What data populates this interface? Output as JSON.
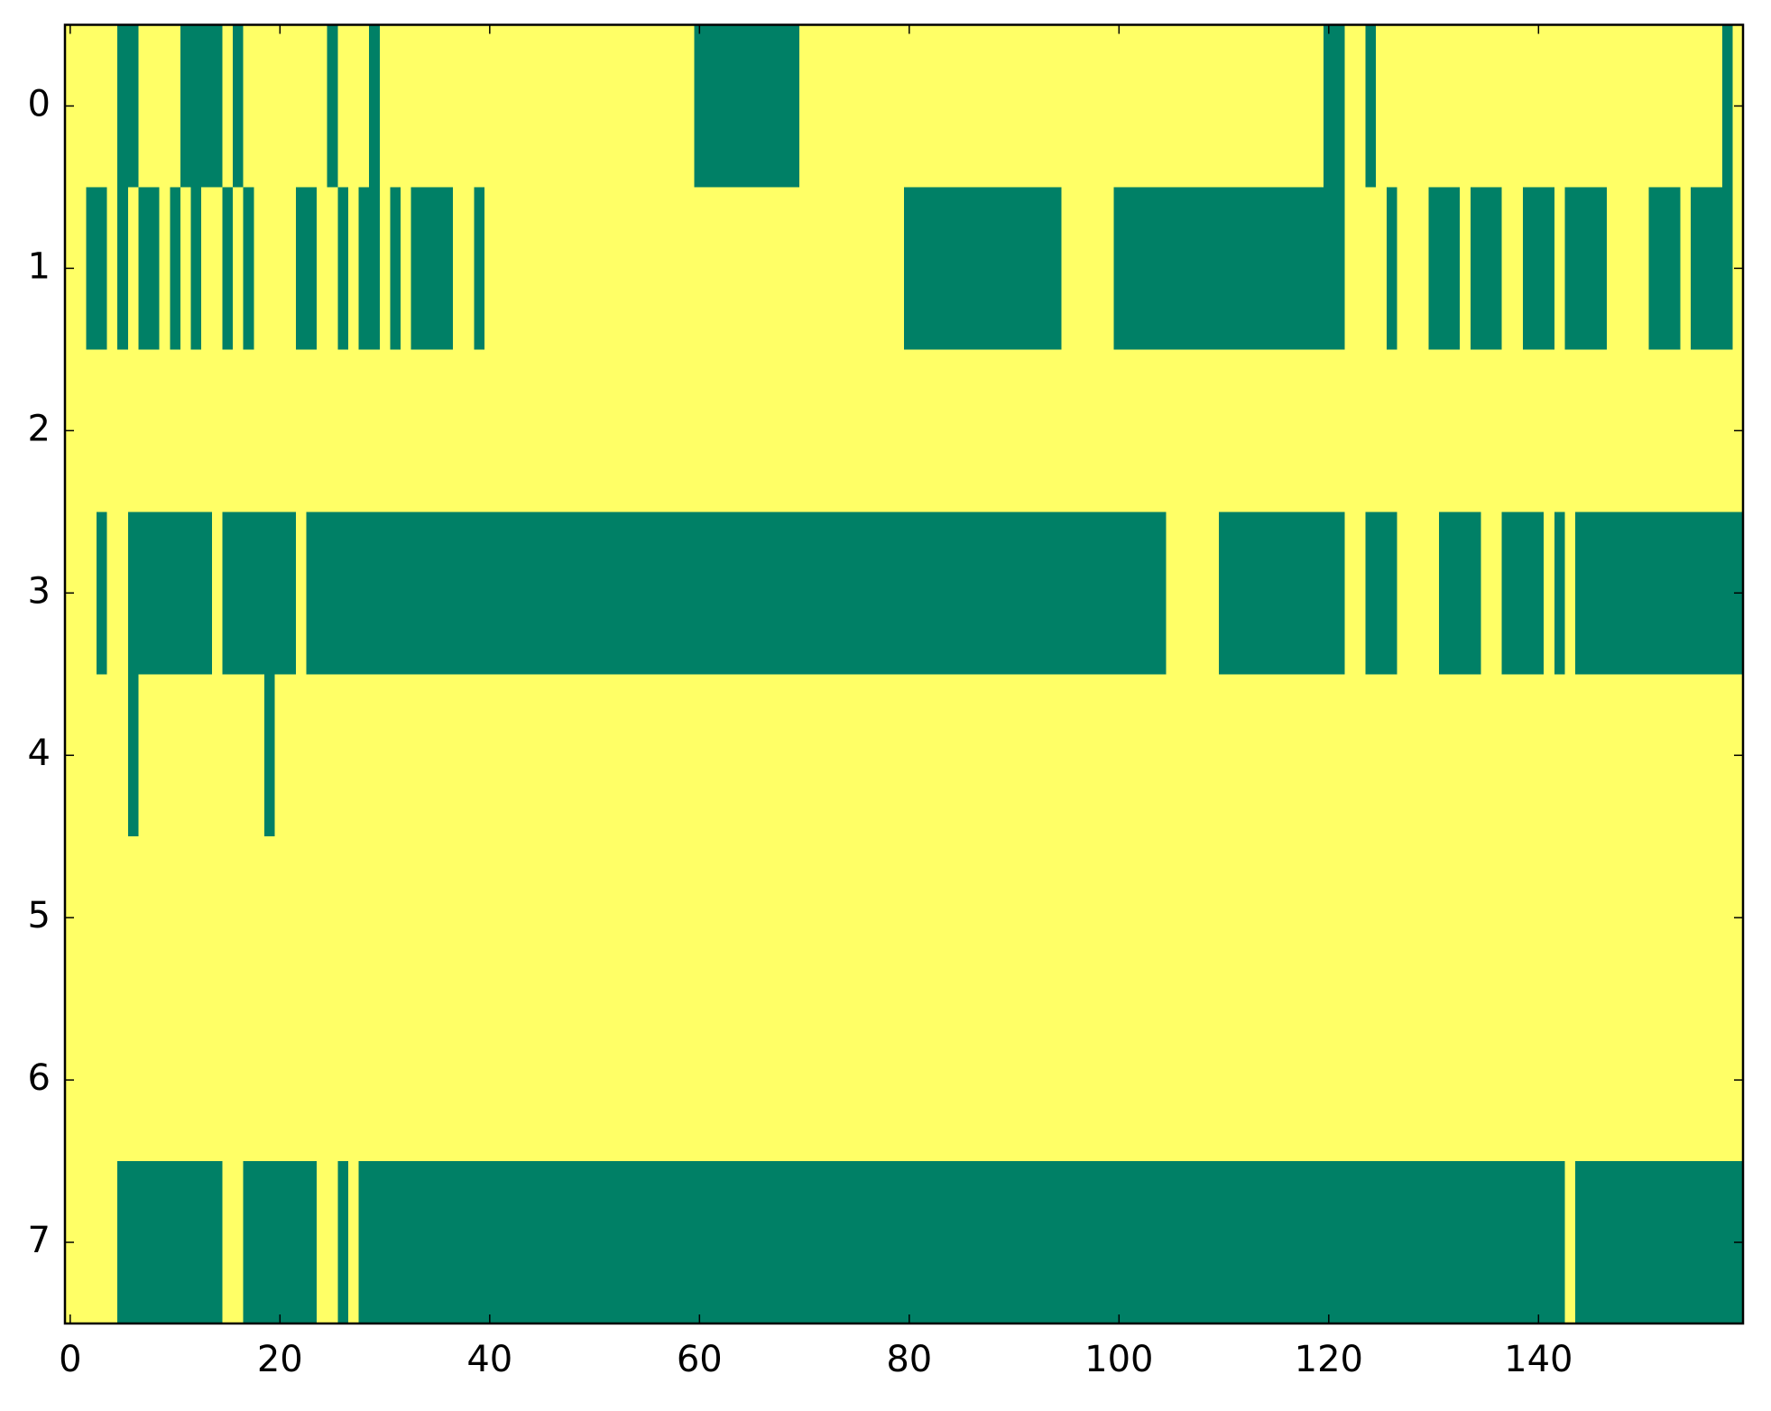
{
  "chart_data": {
    "type": "heatmap",
    "colormap": {
      "0": "#008066",
      "1": "#ffff66"
    },
    "xlim": [
      -0.5,
      159.5
    ],
    "ylim": [
      7.5,
      -0.5
    ],
    "xticks": [
      0,
      20,
      40,
      60,
      80,
      100,
      120,
      140
    ],
    "yticks": [
      0,
      1,
      2,
      3,
      4,
      5,
      6,
      7
    ],
    "z": [
      [
        1,
        1,
        1,
        1,
        1,
        0,
        0,
        1,
        1,
        1,
        1,
        0,
        0,
        0,
        0,
        1,
        0,
        1,
        1,
        1,
        1,
        1,
        1,
        1,
        1,
        0,
        1,
        1,
        1,
        0,
        1,
        1,
        1,
        1,
        1,
        1,
        1,
        1,
        1,
        1,
        1,
        1,
        1,
        1,
        1,
        1,
        1,
        1,
        1,
        1,
        1,
        1,
        1,
        1,
        1,
        1,
        1,
        1,
        1,
        1,
        0,
        0,
        0,
        0,
        0,
        0,
        0,
        0,
        0,
        0,
        1,
        1,
        1,
        1,
        1,
        1,
        1,
        1,
        1,
        1,
        1,
        1,
        1,
        1,
        1,
        1,
        1,
        1,
        1,
        1,
        1,
        1,
        1,
        1,
        1,
        1,
        1,
        1,
        1,
        1,
        1,
        1,
        1,
        1,
        1,
        1,
        1,
        1,
        1,
        1,
        1,
        1,
        1,
        1,
        1,
        1,
        1,
        1,
        1,
        1,
        0,
        0,
        1,
        1,
        0,
        1,
        1,
        1,
        1,
        1,
        1,
        1,
        1,
        1,
        1,
        1,
        1,
        1,
        1,
        1,
        1,
        1,
        1,
        1,
        1,
        1,
        1,
        1,
        1,
        1,
        1,
        1,
        1,
        1,
        1,
        1,
        1,
        1,
        0,
        1
      ],
      [
        1,
        1,
        0,
        0,
        1,
        0,
        1,
        0,
        0,
        1,
        0,
        1,
        0,
        1,
        1,
        0,
        1,
        0,
        1,
        1,
        1,
        1,
        0,
        0,
        1,
        1,
        0,
        1,
        0,
        0,
        1,
        0,
        1,
        0,
        0,
        0,
        0,
        1,
        1,
        0,
        1,
        1,
        1,
        1,
        1,
        1,
        1,
        1,
        1,
        1,
        1,
        1,
        1,
        1,
        1,
        1,
        1,
        1,
        1,
        1,
        1,
        1,
        1,
        1,
        1,
        1,
        1,
        1,
        1,
        1,
        1,
        1,
        1,
        1,
        1,
        1,
        1,
        1,
        1,
        1,
        0,
        0,
        0,
        0,
        0,
        0,
        0,
        0,
        0,
        0,
        0,
        0,
        0,
        0,
        0,
        1,
        1,
        1,
        1,
        1,
        0,
        0,
        0,
        0,
        0,
        0,
        0,
        0,
        0,
        0,
        0,
        0,
        0,
        0,
        0,
        0,
        0,
        0,
        0,
        0,
        0,
        0,
        1,
        1,
        1,
        1,
        0,
        1,
        1,
        1,
        0,
        0,
        0,
        1,
        0,
        0,
        0,
        1,
        1,
        0,
        0,
        0,
        1,
        0,
        0,
        0,
        0,
        1,
        1,
        1,
        1,
        0,
        0,
        0,
        1,
        0,
        0,
        0,
        0,
        1
      ],
      [
        1,
        1,
        1,
        1,
        1,
        1,
        1,
        1,
        1,
        1,
        1,
        1,
        1,
        1,
        1,
        1,
        1,
        1,
        1,
        1,
        1,
        1,
        1,
        1,
        1,
        1,
        1,
        1,
        1,
        1,
        1,
        1,
        1,
        1,
        1,
        1,
        1,
        1,
        1,
        1,
        1,
        1,
        1,
        1,
        1,
        1,
        1,
        1,
        1,
        1,
        1,
        1,
        1,
        1,
        1,
        1,
        1,
        1,
        1,
        1,
        1,
        1,
        1,
        1,
        1,
        1,
        1,
        1,
        1,
        1,
        1,
        1,
        1,
        1,
        1,
        1,
        1,
        1,
        1,
        1,
        1,
        1,
        1,
        1,
        1,
        1,
        1,
        1,
        1,
        1,
        1,
        1,
        1,
        1,
        1,
        1,
        1,
        1,
        1,
        1,
        1,
        1,
        1,
        1,
        1,
        1,
        1,
        1,
        1,
        1,
        1,
        1,
        1,
        1,
        1,
        1,
        1,
        1,
        1,
        1,
        1,
        1,
        1,
        1,
        1,
        1,
        1,
        1,
        1,
        1,
        1,
        1,
        1,
        1,
        1,
        1,
        1,
        1,
        1,
        1,
        1,
        1,
        1,
        1,
        1,
        1,
        1,
        1,
        1,
        1,
        1,
        1,
        1,
        1,
        1,
        1,
        1,
        1,
        1,
        1
      ],
      [
        1,
        1,
        1,
        0,
        1,
        1,
        0,
        0,
        0,
        0,
        0,
        0,
        0,
        0,
        1,
        0,
        0,
        0,
        0,
        0,
        0,
        0,
        1,
        0,
        0,
        0,
        0,
        0,
        0,
        0,
        0,
        0,
        0,
        0,
        0,
        0,
        0,
        0,
        0,
        0,
        0,
        0,
        0,
        0,
        0,
        0,
        0,
        0,
        0,
        0,
        0,
        0,
        0,
        0,
        0,
        0,
        0,
        0,
        0,
        0,
        0,
        0,
        0,
        0,
        0,
        0,
        0,
        0,
        0,
        0,
        0,
        0,
        0,
        0,
        0,
        0,
        0,
        0,
        0,
        0,
        0,
        0,
        0,
        0,
        0,
        0,
        0,
        0,
        0,
        0,
        0,
        0,
        0,
        0,
        0,
        0,
        0,
        0,
        0,
        0,
        0,
        0,
        0,
        0,
        0,
        1,
        1,
        1,
        1,
        1,
        0,
        0,
        0,
        0,
        0,
        0,
        0,
        0,
        0,
        0,
        0,
        0,
        1,
        1,
        0,
        0,
        0,
        1,
        1,
        1,
        1,
        0,
        0,
        0,
        0,
        1,
        1,
        0,
        0,
        0,
        0,
        1,
        0,
        1,
        0,
        0,
        0,
        0,
        0,
        0,
        0,
        0,
        0,
        0,
        0,
        0,
        0,
        0,
        0,
        0
      ],
      [
        1,
        1,
        1,
        1,
        1,
        1,
        0,
        1,
        1,
        1,
        1,
        1,
        1,
        1,
        1,
        1,
        1,
        1,
        1,
        0,
        1,
        1,
        1,
        1,
        1,
        1,
        1,
        1,
        1,
        1,
        1,
        1,
        1,
        1,
        1,
        1,
        1,
        1,
        1,
        1,
        1,
        1,
        1,
        1,
        1,
        1,
        1,
        1,
        1,
        1,
        1,
        1,
        1,
        1,
        1,
        1,
        1,
        1,
        1,
        1,
        1,
        1,
        1,
        1,
        1,
        1,
        1,
        1,
        1,
        1,
        1,
        1,
        1,
        1,
        1,
        1,
        1,
        1,
        1,
        1,
        1,
        1,
        1,
        1,
        1,
        1,
        1,
        1,
        1,
        1,
        1,
        1,
        1,
        1,
        1,
        1,
        1,
        1,
        1,
        1,
        1,
        1,
        1,
        1,
        1,
        1,
        1,
        1,
        1,
        1,
        1,
        1,
        1,
        1,
        1,
        1,
        1,
        1,
        1,
        1,
        1,
        1,
        1,
        1,
        1,
        1,
        1,
        1,
        1,
        1,
        1,
        1,
        1,
        1,
        1,
        1,
        1,
        1,
        1,
        1,
        1,
        1,
        1,
        1,
        1,
        1,
        1,
        1,
        1,
        1,
        1,
        1,
        1,
        1,
        1,
        1,
        1,
        1,
        1,
        1
      ],
      [
        1,
        1,
        1,
        1,
        1,
        1,
        1,
        1,
        1,
        1,
        1,
        1,
        1,
        1,
        1,
        1,
        1,
        1,
        1,
        1,
        1,
        1,
        1,
        1,
        1,
        1,
        1,
        1,
        1,
        1,
        1,
        1,
        1,
        1,
        1,
        1,
        1,
        1,
        1,
        1,
        1,
        1,
        1,
        1,
        1,
        1,
        1,
        1,
        1,
        1,
        1,
        1,
        1,
        1,
        1,
        1,
        1,
        1,
        1,
        1,
        1,
        1,
        1,
        1,
        1,
        1,
        1,
        1,
        1,
        1,
        1,
        1,
        1,
        1,
        1,
        1,
        1,
        1,
        1,
        1,
        1,
        1,
        1,
        1,
        1,
        1,
        1,
        1,
        1,
        1,
        1,
        1,
        1,
        1,
        1,
        1,
        1,
        1,
        1,
        1,
        1,
        1,
        1,
        1,
        1,
        1,
        1,
        1,
        1,
        1,
        1,
        1,
        1,
        1,
        1,
        1,
        1,
        1,
        1,
        1,
        1,
        1,
        1,
        1,
        1,
        1,
        1,
        1,
        1,
        1,
        1,
        1,
        1,
        1,
        1,
        1,
        1,
        1,
        1,
        1,
        1,
        1,
        1,
        1,
        1,
        1,
        1,
        1,
        1,
        1,
        1,
        1,
        1,
        1,
        1,
        1,
        1,
        1,
        1,
        1
      ],
      [
        1,
        1,
        1,
        1,
        1,
        1,
        1,
        1,
        1,
        1,
        1,
        1,
        1,
        1,
        1,
        1,
        1,
        1,
        1,
        1,
        1,
        1,
        1,
        1,
        1,
        1,
        1,
        1,
        1,
        1,
        1,
        1,
        1,
        1,
        1,
        1,
        1,
        1,
        1,
        1,
        1,
        1,
        1,
        1,
        1,
        1,
        1,
        1,
        1,
        1,
        1,
        1,
        1,
        1,
        1,
        1,
        1,
        1,
        1,
        1,
        1,
        1,
        1,
        1,
        1,
        1,
        1,
        1,
        1,
        1,
        1,
        1,
        1,
        1,
        1,
        1,
        1,
        1,
        1,
        1,
        1,
        1,
        1,
        1,
        1,
        1,
        1,
        1,
        1,
        1,
        1,
        1,
        1,
        1,
        1,
        1,
        1,
        1,
        1,
        1,
        1,
        1,
        1,
        1,
        1,
        1,
        1,
        1,
        1,
        1,
        1,
        1,
        1,
        1,
        1,
        1,
        1,
        1,
        1,
        1,
        1,
        1,
        1,
        1,
        1,
        1,
        1,
        1,
        1,
        1,
        1,
        1,
        1,
        1,
        1,
        1,
        1,
        1,
        1,
        1,
        1,
        1,
        1,
        1,
        1,
        1,
        1,
        1,
        1,
        1,
        1,
        1,
        1,
        1,
        1,
        1,
        1,
        1,
        1,
        1
      ],
      [
        1,
        1,
        1,
        1,
        1,
        0,
        0,
        0,
        0,
        0,
        0,
        0,
        0,
        0,
        0,
        1,
        1,
        0,
        0,
        0,
        0,
        0,
        0,
        0,
        1,
        1,
        0,
        1,
        0,
        0,
        0,
        0,
        0,
        0,
        0,
        0,
        0,
        0,
        0,
        0,
        0,
        0,
        0,
        0,
        0,
        0,
        0,
        0,
        0,
        0,
        0,
        0,
        0,
        0,
        0,
        0,
        0,
        0,
        0,
        0,
        0,
        0,
        0,
        0,
        0,
        0,
        0,
        0,
        0,
        0,
        0,
        0,
        0,
        0,
        0,
        0,
        0,
        0,
        0,
        0,
        0,
        0,
        0,
        0,
        0,
        0,
        0,
        0,
        0,
        0,
        0,
        0,
        0,
        0,
        0,
        0,
        0,
        0,
        0,
        0,
        0,
        0,
        0,
        0,
        0,
        0,
        0,
        0,
        0,
        0,
        0,
        0,
        0,
        0,
        0,
        0,
        0,
        0,
        0,
        0,
        0,
        0,
        0,
        0,
        0,
        0,
        0,
        0,
        0,
        0,
        0,
        0,
        0,
        0,
        0,
        0,
        0,
        0,
        0,
        0,
        0,
        0,
        0,
        1,
        0,
        0,
        0,
        0,
        0,
        0,
        0,
        0,
        0,
        0,
        0,
        0,
        0,
        0,
        0,
        0
      ]
    ]
  }
}
